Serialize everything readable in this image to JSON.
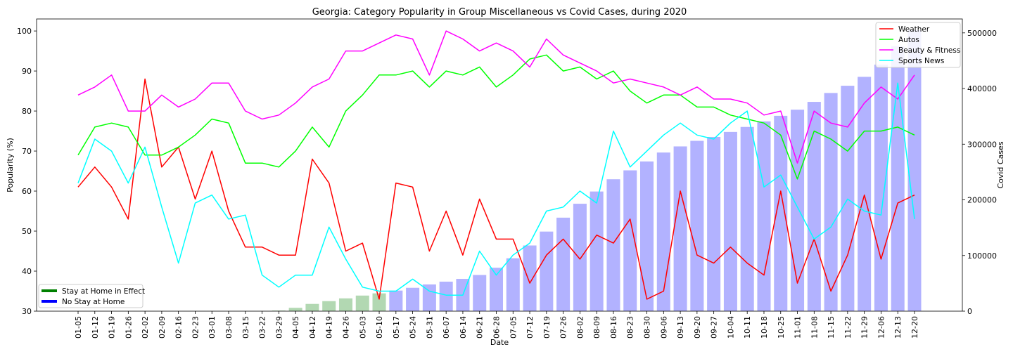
{
  "chart_data": {
    "type": "line",
    "title": "Georgia: Category Popularity in Group Miscellaneous vs Covid Cases, during 2020",
    "xlabel": "Date",
    "ylabel": "Popularity (%)",
    "y2label": "Covid Cases",
    "ylim": [
      30,
      103
    ],
    "y2lim": [
      0,
      525000
    ],
    "yticks": [
      30,
      40,
      50,
      60,
      70,
      80,
      90,
      100
    ],
    "y2ticks": [
      0,
      100000,
      200000,
      300000,
      400000,
      500000
    ],
    "categories": [
      "01-05",
      "01-12",
      "01-19",
      "01-26",
      "02-02",
      "02-09",
      "02-16",
      "02-23",
      "03-01",
      "03-08",
      "03-15",
      "03-22",
      "03-29",
      "04-05",
      "04-12",
      "04-19",
      "04-26",
      "05-03",
      "05-10",
      "05-17",
      "05-24",
      "05-31",
      "06-07",
      "06-14",
      "06-21",
      "06-28",
      "07-05",
      "07-12",
      "07-19",
      "07-26",
      "08-02",
      "08-09",
      "08-16",
      "08-23",
      "08-30",
      "09-06",
      "09-13",
      "09-20",
      "09-27",
      "10-04",
      "10-11",
      "10-18",
      "10-25",
      "11-01",
      "11-08",
      "11-15",
      "11-22",
      "11-29",
      "12-06",
      "12-13",
      "12-20"
    ],
    "series": [
      {
        "name": "Weather",
        "color": "#ff0000",
        "values": [
          61,
          66,
          61,
          53,
          88,
          66,
          71,
          58,
          70,
          55,
          46,
          46,
          44,
          44,
          68,
          62,
          45,
          47,
          33,
          62,
          61,
          45,
          55,
          44,
          58,
          48,
          48,
          37,
          44,
          48,
          43,
          49,
          47,
          53,
          33,
          35,
          60,
          44,
          42,
          46,
          42,
          39,
          60,
          37,
          48,
          35,
          44,
          59,
          43,
          57,
          59
        ]
      },
      {
        "name": "Autos",
        "color": "#00ff00",
        "values": [
          69,
          76,
          77,
          76,
          69,
          69,
          71,
          74,
          78,
          77,
          67,
          67,
          66,
          70,
          76,
          71,
          80,
          84,
          89,
          89,
          90,
          86,
          90,
          89,
          91,
          86,
          89,
          93,
          94,
          90,
          91,
          88,
          90,
          85,
          82,
          84,
          84,
          81,
          81,
          79,
          78,
          77,
          74,
          63,
          75,
          73,
          70,
          75,
          75,
          76,
          74
        ]
      },
      {
        "name": "Beauty & Fitness",
        "color": "#ff00ff",
        "values": [
          84,
          86,
          89,
          80,
          80,
          84,
          81,
          83,
          87,
          87,
          80,
          78,
          79,
          82,
          86,
          88,
          95,
          95,
          97,
          99,
          98,
          89,
          100,
          98,
          95,
          97,
          95,
          91,
          98,
          94,
          92,
          90,
          87,
          88,
          87,
          86,
          84,
          86,
          83,
          83,
          82,
          79,
          80,
          67,
          80,
          77,
          76,
          82,
          86,
          83,
          89
        ]
      },
      {
        "name": "Sports News",
        "color": "#00ffff",
        "values": [
          62,
          73,
          70,
          62,
          71,
          56,
          42,
          57,
          59,
          53,
          54,
          39,
          36,
          39,
          39,
          51,
          43,
          36,
          35,
          35,
          38,
          35,
          34,
          34,
          45,
          39,
          44,
          47,
          55,
          56,
          60,
          57,
          75,
          66,
          70,
          74,
          77,
          74,
          73,
          77,
          80,
          61,
          64,
          56,
          48,
          51,
          58,
          55,
          54,
          87,
          53
        ]
      }
    ],
    "bars": {
      "name": "Covid Cases",
      "first_index": 12,
      "values": [
        1000,
        6000,
        13000,
        18000,
        23000,
        28000,
        32000,
        37000,
        42000,
        48000,
        53000,
        58000,
        65000,
        78000,
        95000,
        118000,
        143000,
        168000,
        193000,
        215000,
        237000,
        253000,
        269000,
        285000,
        296000,
        306000,
        313000,
        322000,
        331000,
        341000,
        351000,
        362000,
        376000,
        392000,
        405000,
        421000,
        443000,
        476000,
        505000
      ],
      "colors": {
        "stay_home": "#b2d8b2",
        "no_stay_home": "#b2b2ff"
      },
      "stay_home_last_index": 18
    },
    "bar_legend": [
      {
        "label": "Stay at Home in Effect",
        "color": "#008000"
      },
      {
        "label": "No Stay at Home",
        "color": "#0000ff"
      }
    ],
    "legend_position": "top-right",
    "grid": false
  }
}
